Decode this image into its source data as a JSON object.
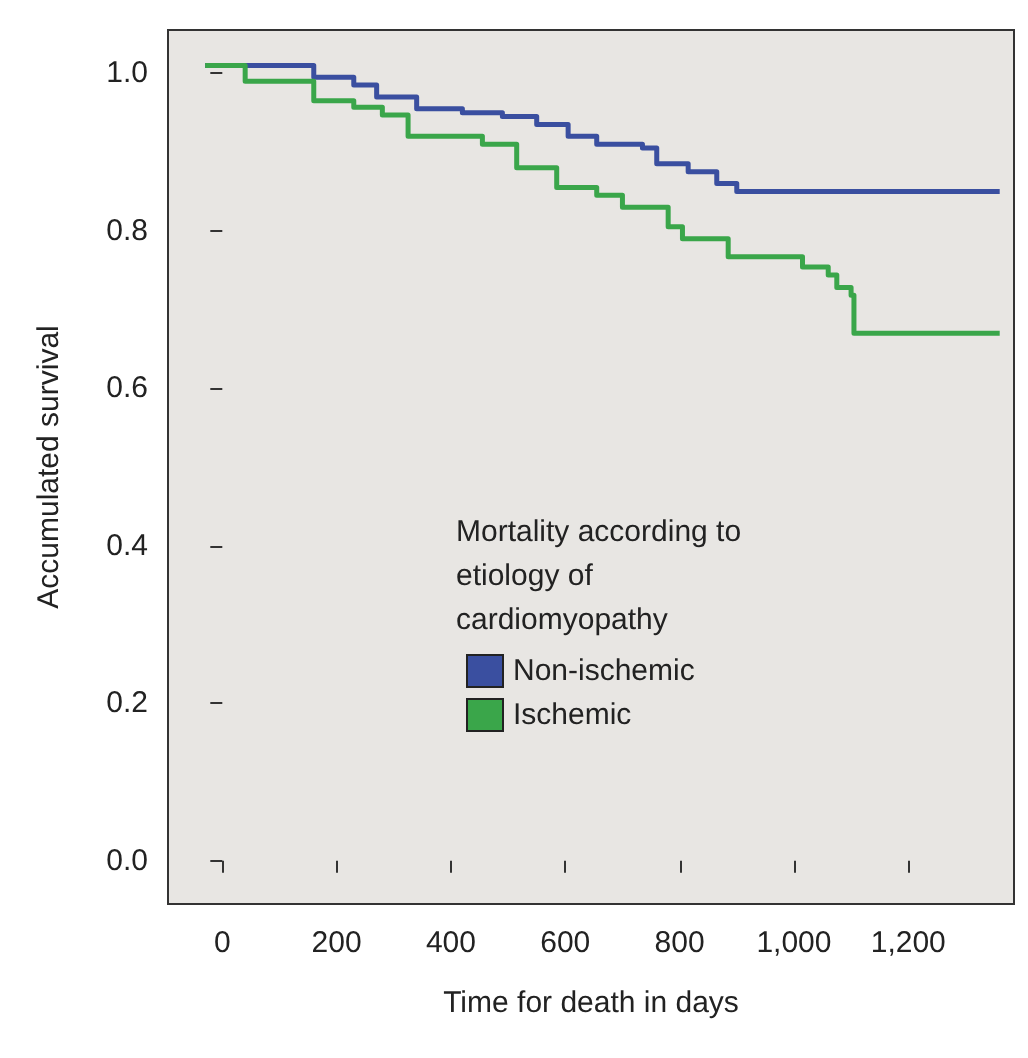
{
  "chart_data": {
    "type": "step",
    "xlabel": "Time for death in days",
    "ylabel": "Accumulated survival",
    "legend_title": "Mortality according to etiology of cardiomyopathy",
    "legend": "bottom right",
    "grid": false,
    "xlim": [
      -95,
      1385
    ],
    "ylim": [
      -0.055,
      1.055
    ],
    "xticks": [
      0,
      200,
      400,
      600,
      800,
      {
        "value": 1000,
        "label": "1,000"
      },
      {
        "value": 1200,
        "label": "1,200"
      }
    ],
    "yticks": [
      {
        "value": 0,
        "label": "0.0"
      },
      0.2,
      0.4,
      0.6,
      0.8,
      {
        "value": 1,
        "label": "1.0"
      }
    ],
    "series": [
      {
        "name": "Non-ischemic",
        "color": "#3a4fa0",
        "x": [
          -30,
          160,
          230,
          270,
          340,
          420,
          490,
          550,
          605,
          655,
          735,
          760,
          815,
          865,
          900,
          1360
        ],
        "values": [
          1.01,
          0.995,
          0.985,
          0.97,
          0.955,
          0.95,
          0.945,
          0.935,
          0.92,
          0.91,
          0.905,
          0.885,
          0.875,
          0.86,
          0.85,
          0.85
        ]
      },
      {
        "name": "Ischemic",
        "color": "#3aa64a",
        "x": [
          -30,
          40,
          160,
          230,
          280,
          325,
          455,
          515,
          585,
          655,
          700,
          780,
          805,
          875,
          885,
          990,
          1015,
          1060,
          1075,
          1100,
          1105,
          1360
        ],
        "values": [
          1.01,
          0.99,
          0.965,
          0.957,
          0.947,
          0.92,
          0.91,
          0.88,
          0.855,
          0.845,
          0.83,
          0.805,
          0.79,
          0.79,
          0.767,
          0.767,
          0.754,
          0.744,
          0.728,
          0.718,
          0.67,
          0.67
        ]
      }
    ]
  }
}
